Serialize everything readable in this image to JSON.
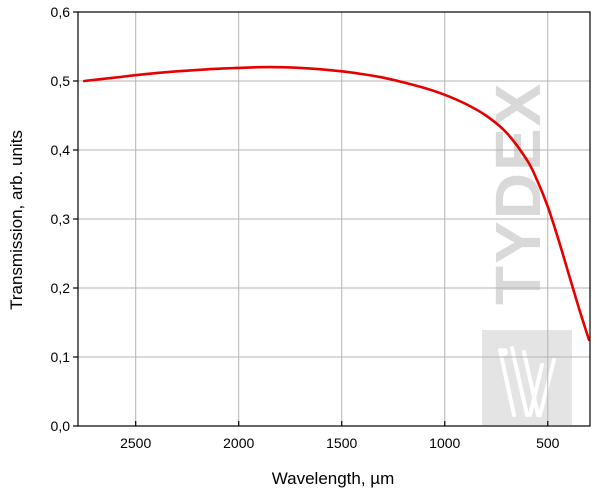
{
  "chart_data": {
    "type": "line",
    "title": "",
    "xlabel": "Wavelength, µm",
    "ylabel": "Transmission, arb. units",
    "xlim": [
      2780,
      295
    ],
    "ylim": [
      0.0,
      0.6
    ],
    "x_reversed": true,
    "grid": true,
    "x_ticks": [
      2500,
      2000,
      1500,
      1000,
      500
    ],
    "x_tick_labels": [
      "2500",
      "2000",
      "1500",
      "1000",
      "500"
    ],
    "y_ticks": [
      0.0,
      0.1,
      0.2,
      0.3,
      0.4,
      0.5,
      0.6
    ],
    "y_tick_labels": [
      "0,0",
      "0,1",
      "0,2",
      "0,3",
      "0,4",
      "0,5",
      "0,6"
    ],
    "series": [
      {
        "color": "#e60000",
        "x": [
          2750,
          2600,
          2450,
          2300,
          2150,
          2000,
          1900,
          1800,
          1700,
          1600,
          1500,
          1400,
          1300,
          1200,
          1100,
          1000,
          900,
          800,
          700,
          600,
          550,
          500,
          450,
          400,
          350,
          300
        ],
        "y": [
          0.5,
          0.505,
          0.51,
          0.514,
          0.517,
          0.519,
          0.52,
          0.52,
          0.519,
          0.517,
          0.514,
          0.51,
          0.505,
          0.498,
          0.49,
          0.48,
          0.467,
          0.45,
          0.425,
          0.385,
          0.355,
          0.318,
          0.272,
          0.222,
          0.172,
          0.125
        ]
      }
    ]
  },
  "watermark": {
    "text": "TYDEX",
    "color": "#d9d9d9"
  }
}
